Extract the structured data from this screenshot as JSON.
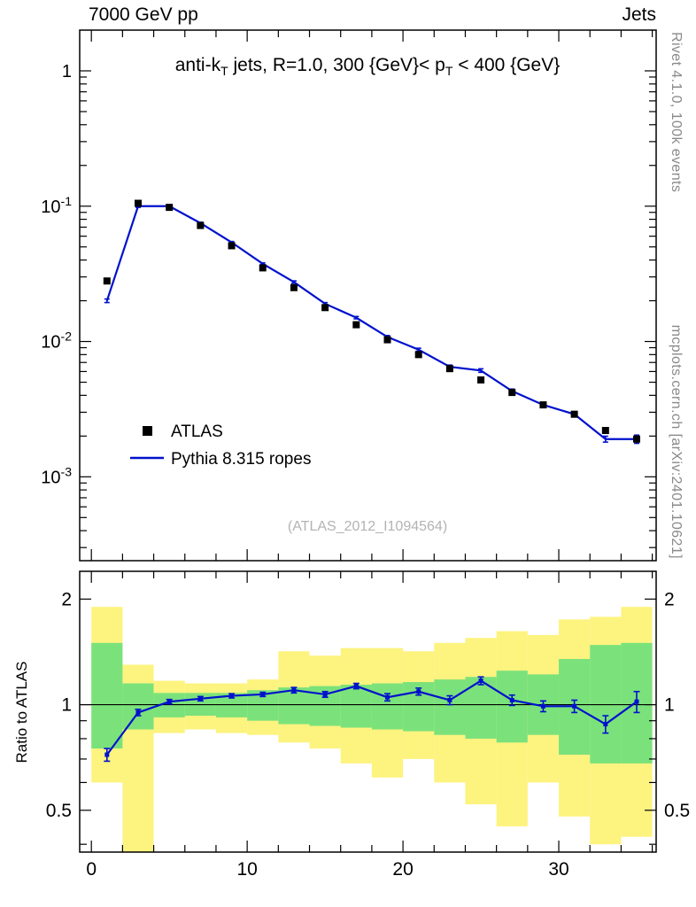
{
  "header": {
    "left": "7000 GeV pp",
    "right": "Jets"
  },
  "side_captions": {
    "top": "Rivet 4.1.0,  100k events",
    "bottom": "mcplots.cern.ch [arXiv:2401.10621]"
  },
  "watermark": "(ATLAS_2012_I1094564)",
  "ratio_ylabel": "Ratio to ATLAS",
  "colors": {
    "model_line": "#0011cc",
    "data_marker": "#000000",
    "band_outer": "#fdf37f",
    "band_inner": "#7be27b",
    "caption_gray": "#8a8a8a",
    "watermark_gray": "#b3b3b3"
  },
  "legend": [
    {
      "label": "ATLAS",
      "marker": "black-square"
    },
    {
      "label": "Pythia 8.315 ropes",
      "marker": "blue-line"
    }
  ],
  "title_parts": [
    {
      "t": "anti-k"
    },
    {
      "t": "T",
      "sub": true
    },
    {
      "t": " jets, R=1.0, 300 {GeV}< p"
    },
    {
      "t": "T",
      "sub": true
    },
    {
      "t": " < 400 {GeV}"
    }
  ],
  "chart_data": [
    {
      "type": "line",
      "title": "anti-kT jets, R=1.0, 300 {GeV}< pT < 400 {GeV}",
      "x": [
        1,
        3,
        5,
        7,
        9,
        11,
        13,
        15,
        17,
        19,
        21,
        23,
        25,
        27,
        29,
        31,
        33,
        35
      ],
      "series": [
        {
          "name": "ATLAS",
          "style": "black-squares",
          "values": [
            0.028,
            0.105,
            0.098,
            0.072,
            0.051,
            0.035,
            0.025,
            0.0178,
            0.0133,
            0.0103,
            0.008,
            0.0063,
            0.0052,
            0.0042,
            0.0034,
            0.0029,
            0.0022,
            0.0019
          ]
        },
        {
          "name": "Pythia 8.315 ropes",
          "style": "blue-line",
          "values": [
            0.02,
            0.1,
            0.1,
            0.075,
            0.054,
            0.0375,
            0.0275,
            0.019,
            0.015,
            0.0108,
            0.0087,
            0.0065,
            0.0061,
            0.0043,
            0.0034,
            0.0029,
            0.0019,
            0.0019
          ]
        }
      ],
      "frac_err": [
        0.03,
        0.02,
        0.015,
        0.015,
        0.015,
        0.015,
        0.02,
        0.02,
        0.02,
        0.025,
        0.025,
        0.03,
        0.03,
        0.035,
        0.035,
        0.04,
        0.05,
        0.07
      ],
      "xlim": [
        -0.75,
        36.25
      ],
      "ylim": [
        0.00024,
        2.0
      ],
      "yscale": "log",
      "xticks": [
        0,
        10,
        20,
        30
      ],
      "yticks": [
        1,
        0.1,
        0.01,
        0.001
      ],
      "x_minor_step": 2,
      "legend_position": "left-bottom-inside"
    },
    {
      "type": "ratio",
      "ylabel": "Ratio to ATLAS",
      "x": [
        1,
        3,
        5,
        7,
        9,
        11,
        13,
        15,
        17,
        19,
        21,
        23,
        25,
        27,
        29,
        31,
        33,
        35
      ],
      "values": [
        0.72,
        0.95,
        1.02,
        1.04,
        1.06,
        1.07,
        1.1,
        1.07,
        1.13,
        1.05,
        1.09,
        1.03,
        1.17,
        1.03,
        0.99,
        0.99,
        0.88,
        1.02
      ],
      "errors": [
        0.03,
        0.02,
        0.015,
        0.015,
        0.015,
        0.015,
        0.02,
        0.02,
        0.02,
        0.025,
        0.025,
        0.03,
        0.03,
        0.035,
        0.035,
        0.04,
        0.05,
        0.07
      ],
      "bin_width": 2,
      "band_outer": [
        [
          0.6,
          1.9
        ],
        [
          0.3,
          1.3
        ],
        [
          0.83,
          1.17
        ],
        [
          0.85,
          1.15
        ],
        [
          0.83,
          1.15
        ],
        [
          0.82,
          1.18
        ],
        [
          0.78,
          1.42
        ],
        [
          0.75,
          1.38
        ],
        [
          0.68,
          1.45
        ],
        [
          0.62,
          1.45
        ],
        [
          0.7,
          1.42
        ],
        [
          0.6,
          1.5
        ],
        [
          0.52,
          1.55
        ],
        [
          0.45,
          1.62
        ],
        [
          0.6,
          1.58
        ],
        [
          0.48,
          1.75
        ],
        [
          0.4,
          1.78
        ],
        [
          0.42,
          1.9
        ]
      ],
      "band_inner": [
        [
          0.75,
          1.5
        ],
        [
          0.85,
          1.15
        ],
        [
          0.92,
          1.08
        ],
        [
          0.93,
          1.08
        ],
        [
          0.92,
          1.08
        ],
        [
          0.9,
          1.1
        ],
        [
          0.88,
          1.12
        ],
        [
          0.87,
          1.13
        ],
        [
          0.86,
          1.14
        ],
        [
          0.85,
          1.15
        ],
        [
          0.84,
          1.16
        ],
        [
          0.82,
          1.18
        ],
        [
          0.8,
          1.2
        ],
        [
          0.78,
          1.25
        ],
        [
          0.82,
          1.22
        ],
        [
          0.72,
          1.35
        ],
        [
          0.68,
          1.48
        ],
        [
          0.68,
          1.5
        ]
      ],
      "xlim": [
        -0.75,
        36.25
      ],
      "ylim": [
        0.38,
        2.4
      ],
      "yscale": "log",
      "xticks": [
        0,
        10,
        20,
        30
      ],
      "yticks": [
        0.5,
        1,
        2
      ],
      "x_minor_step": 2
    }
  ]
}
